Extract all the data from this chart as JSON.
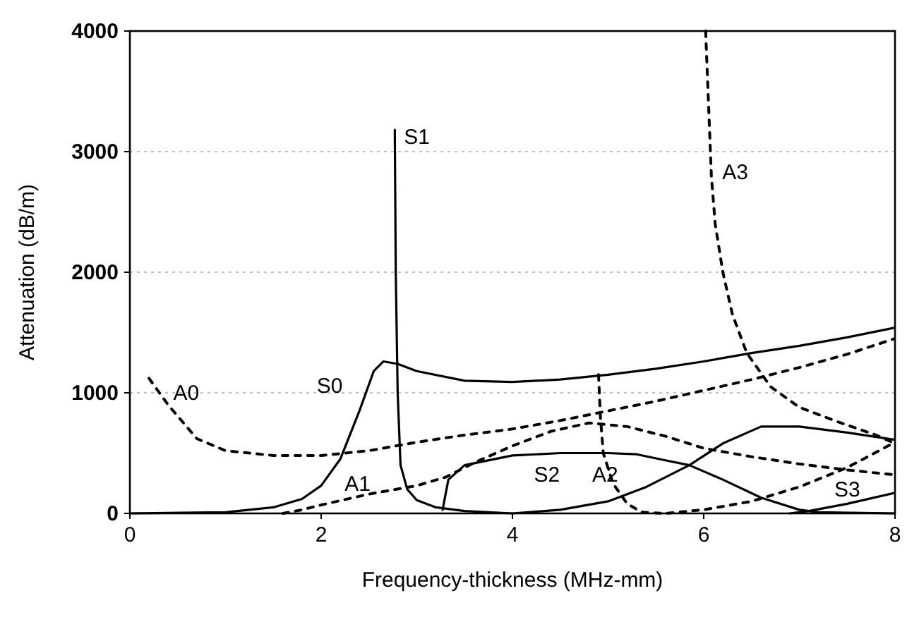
{
  "chart_data": {
    "type": "line",
    "xlabel": "Frequency-thickness (MHz-mm)",
    "ylabel": "Attenuation (dB/m)",
    "xlim": [
      0,
      8
    ],
    "xticks": [
      0,
      2,
      4,
      6,
      8
    ],
    "ylim": [
      0,
      4000
    ],
    "yticks": [
      0,
      1000,
      2000,
      3000,
      4000
    ],
    "grid": "y",
    "marker": "none",
    "series": [
      {
        "name": "S0",
        "color": "#000000",
        "line_style": "solid",
        "x": [
          0,
          1,
          1.5,
          1.8,
          2,
          2.2,
          2.4,
          2.55,
          2.65,
          2.8,
          3,
          3.5,
          4,
          4.5,
          5,
          5.5,
          6,
          6.5,
          7,
          7.5,
          8
        ],
        "values": [
          0,
          10,
          50,
          120,
          230,
          450,
          850,
          1180,
          1260,
          1240,
          1180,
          1100,
          1090,
          1110,
          1150,
          1200,
          1260,
          1330,
          1390,
          1460,
          1540
        ]
      },
      {
        "name": "S1",
        "color": "#000000",
        "line_style": "solid",
        "x": [
          2.77,
          2.78,
          2.8,
          2.83,
          2.9,
          3,
          3.2,
          3.5,
          4,
          4.5,
          5,
          5.4,
          5.85,
          6.2,
          6.6,
          7,
          7.5,
          8
        ],
        "values": [
          3180,
          2000,
          1000,
          400,
          200,
          110,
          50,
          20,
          0,
          30,
          100,
          220,
          400,
          580,
          720,
          720,
          670,
          610
        ]
      },
      {
        "name": "S2",
        "color": "#000000",
        "line_style": "solid",
        "x": [
          3.27,
          3.33,
          3.5,
          4,
          4.5,
          5,
          5.3,
          5.6,
          5.85,
          6.2,
          6.6,
          7,
          7.2,
          8
        ],
        "values": [
          30,
          280,
          400,
          480,
          500,
          500,
          490,
          440,
          400,
          280,
          130,
          30,
          10,
          0
        ]
      },
      {
        "name": "S3",
        "color": "#000000",
        "line_style": "solid",
        "x": [
          6.9,
          7.1,
          7.5,
          8
        ],
        "values": [
          0,
          20,
          80,
          170
        ]
      },
      {
        "name": "A0",
        "color": "#000000",
        "line_style": "dashed",
        "x": [
          0.2,
          0.4,
          0.7,
          1,
          1.5,
          2,
          2.5,
          3,
          3.5,
          4,
          4.5,
          5,
          5.5,
          6,
          6.5,
          7,
          7.5,
          8
        ],
        "values": [
          1120,
          900,
          620,
          520,
          480,
          480,
          520,
          590,
          650,
          700,
          770,
          850,
          930,
          1020,
          1110,
          1210,
          1320,
          1450
        ]
      },
      {
        "name": "A1",
        "color": "#000000",
        "line_style": "dashed",
        "x": [
          1.6,
          1.8,
          2,
          2.5,
          3,
          3.3,
          3.6,
          4,
          4.4,
          4.8,
          5.2,
          5.6,
          6,
          6.5,
          7,
          7.5,
          8
        ],
        "values": [
          0,
          30,
          70,
          160,
          230,
          300,
          420,
          560,
          680,
          750,
          720,
          640,
          540,
          470,
          410,
          360,
          320
        ]
      },
      {
        "name": "A2",
        "color": "#000000",
        "line_style": "dashed",
        "x": [
          4.9,
          4.92,
          4.95,
          5.05,
          5.2,
          5.35,
          5.6,
          6,
          6.5,
          7,
          7.5,
          8
        ],
        "values": [
          1150,
          800,
          500,
          250,
          80,
          10,
          0,
          30,
          100,
          220,
          380,
          590
        ]
      },
      {
        "name": "A3",
        "color": "#000000",
        "line_style": "dashed",
        "x": [
          6.02,
          6.05,
          6.08,
          6.12,
          6.2,
          6.3,
          6.45,
          6.7,
          7,
          7.4,
          7.8,
          8
        ],
        "values": [
          4000,
          3400,
          2800,
          2400,
          2000,
          1650,
          1330,
          1050,
          880,
          760,
          650,
          580
        ]
      }
    ]
  }
}
